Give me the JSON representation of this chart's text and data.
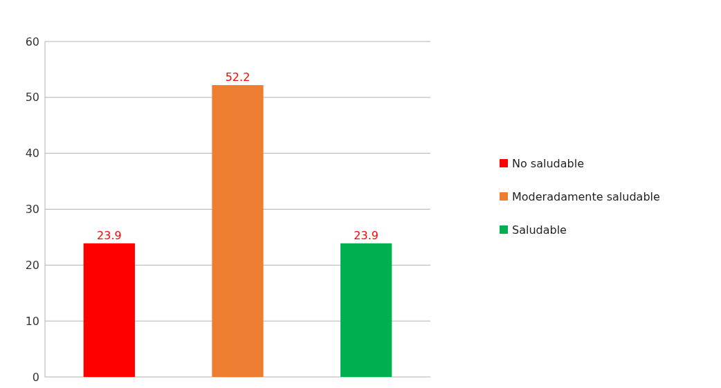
{
  "chart_data": {
    "type": "bar",
    "categories": [
      null,
      null,
      null
    ],
    "series": [
      {
        "name": "No saludable",
        "color": "#ff0000",
        "values": [
          23.9,
          null,
          null
        ]
      },
      {
        "name": "Moderadamente saludable",
        "color": "#ed7d31",
        "values": [
          null,
          52.2,
          null
        ]
      },
      {
        "name": "Saludable",
        "color": "#00b050",
        "values": [
          null,
          null,
          23.9
        ]
      }
    ],
    "ylim": [
      0,
      60
    ],
    "yticks": [
      0,
      10,
      20,
      30,
      40,
      50,
      60
    ],
    "grid": true,
    "legend": "right",
    "data_labels": true
  }
}
